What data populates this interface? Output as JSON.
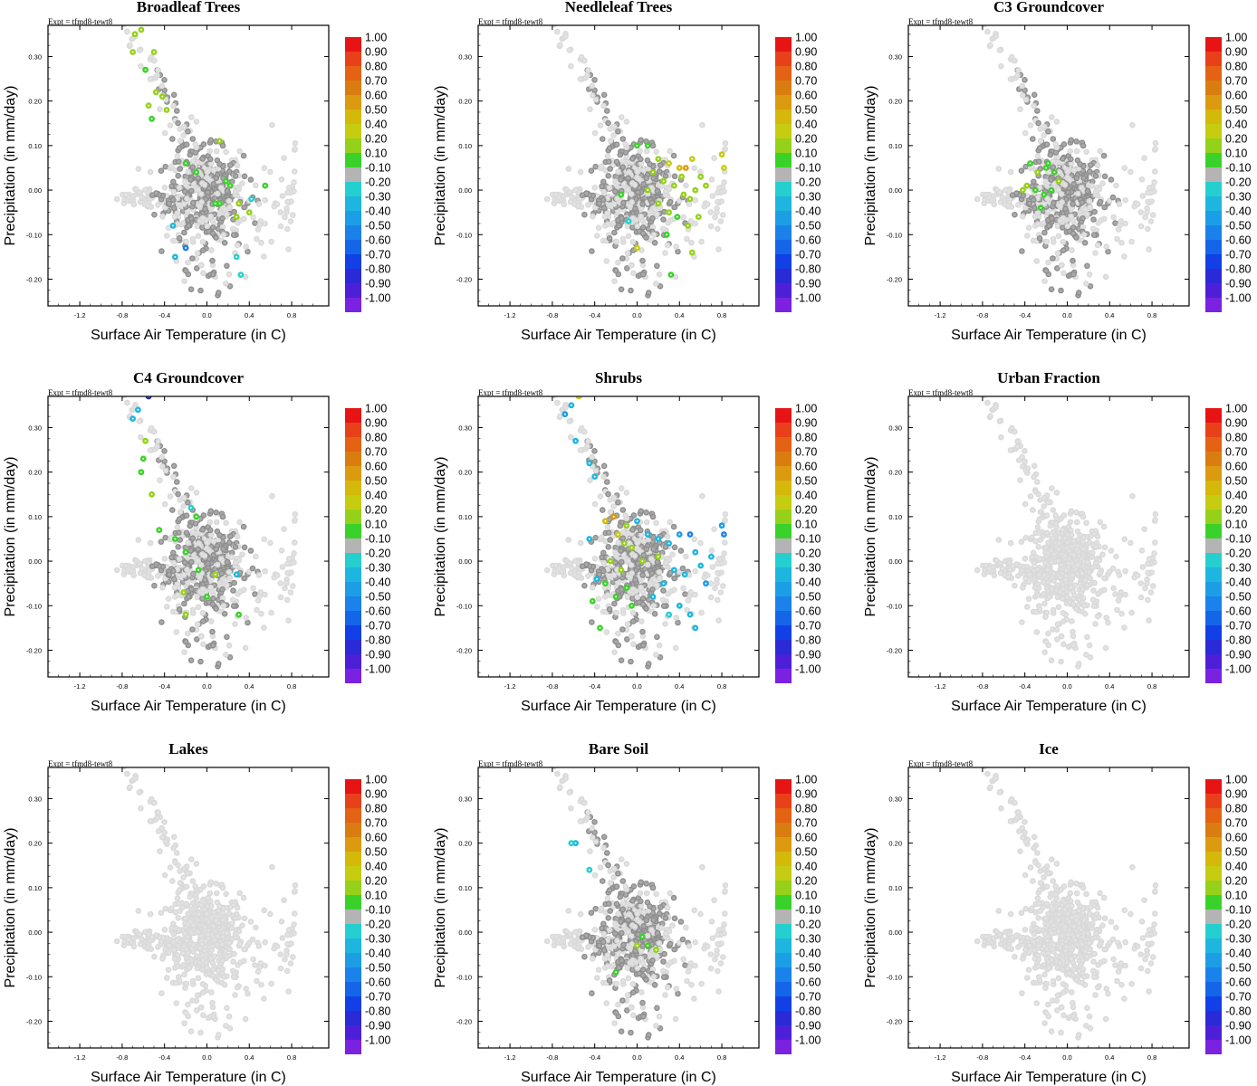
{
  "figure": {
    "expt_label": "Expt = tfmd8-tewt8",
    "xlabel": "Surface Air Temperature (in C)",
    "ylabel": "Precipitation (in mm/day)"
  },
  "colorbar": {
    "labels": [
      "1.00",
      "0.90",
      "0.80",
      "0.70",
      "0.60",
      "0.50",
      "0.40",
      "0.20",
      "0.10",
      "-0.10",
      "-0.20",
      "-0.30",
      "-0.40",
      "-0.50",
      "-0.60",
      "-0.70",
      "-0.80",
      "-0.90",
      "-1.00"
    ],
    "colors": [
      "#e61414",
      "#e8401a",
      "#e36214",
      "#d97d10",
      "#dc9a10",
      "#d4b80a",
      "#c6cc10",
      "#95d11a",
      "#3ad22a",
      "#b4b4b4",
      "#26cfcf",
      "#1eb6de",
      "#1c9ee6",
      "#1a82ea",
      "#1565e8",
      "#1240e6",
      "#2a2ad6",
      "#4d20d8",
      "#7a22e0"
    ]
  },
  "chart_data": [
    {
      "type": "scatter",
      "title": "Broadleaf Trees",
      "xlabel": "Surface Air Temperature (in C)",
      "ylabel": "Precipitation (in mm/day)",
      "xlim": [
        -1.5,
        1.15
      ],
      "ylim": [
        -0.26,
        0.37
      ],
      "xticks": [
        -1.2,
        -0.8,
        -0.4,
        0.0,
        0.4,
        0.8
      ],
      "yticks": [
        -0.2,
        -0.1,
        0.0,
        0.1,
        0.2,
        0.3
      ],
      "colored_points": [
        {
          "x": -0.68,
          "y": 0.35,
          "c": 0.2
        },
        {
          "x": -0.62,
          "y": 0.36,
          "c": 0.2
        },
        {
          "x": -0.7,
          "y": 0.31,
          "c": 0.2
        },
        {
          "x": -0.5,
          "y": 0.31,
          "c": 0.2
        },
        {
          "x": -0.58,
          "y": 0.27,
          "c": 0.1
        },
        {
          "x": -0.48,
          "y": 0.22,
          "c": 0.2
        },
        {
          "x": -0.42,
          "y": 0.21,
          "c": 0.2
        },
        {
          "x": -0.38,
          "y": 0.18,
          "c": 0.2
        },
        {
          "x": -0.55,
          "y": 0.19,
          "c": 0.2
        },
        {
          "x": -0.52,
          "y": 0.16,
          "c": 0.1
        },
        {
          "x": 0.12,
          "y": 0.11,
          "c": 0.2
        },
        {
          "x": -0.1,
          "y": 0.04,
          "c": 0.1
        },
        {
          "x": -0.2,
          "y": 0.06,
          "c": 0.1
        },
        {
          "x": 0.18,
          "y": 0.02,
          "c": 0.1
        },
        {
          "x": 0.22,
          "y": 0.01,
          "c": 0.1
        },
        {
          "x": 0.08,
          "y": -0.03,
          "c": 0.1
        },
        {
          "x": 0.12,
          "y": -0.03,
          "c": 0.1
        },
        {
          "x": 0.3,
          "y": -0.03,
          "c": 0.2
        },
        {
          "x": 0.28,
          "y": -0.06,
          "c": 0.2
        },
        {
          "x": 0.55,
          "y": 0.01,
          "c": 0.1
        },
        {
          "x": 0.42,
          "y": -0.02,
          "c": -0.2
        },
        {
          "x": -0.32,
          "y": -0.08,
          "c": -0.3
        },
        {
          "x": -0.3,
          "y": -0.15,
          "c": -0.3
        },
        {
          "x": -0.2,
          "y": -0.13,
          "c": -0.5
        },
        {
          "x": 0.28,
          "y": -0.15,
          "c": -0.2
        },
        {
          "x": 0.32,
          "y": -0.19,
          "c": -0.2
        },
        {
          "x": 0.4,
          "y": -0.05,
          "c": 0.2
        }
      ]
    },
    {
      "type": "scatter",
      "title": "Needleleaf Trees",
      "xlabel": "Surface Air Temperature (in C)",
      "ylabel": "Precipitation (in mm/day)",
      "xlim": [
        -1.5,
        1.15
      ],
      "ylim": [
        -0.26,
        0.37
      ],
      "xticks": [
        -1.2,
        -0.8,
        -0.4,
        0.0,
        0.4,
        0.8
      ],
      "yticks": [
        -0.2,
        -0.1,
        0.0,
        0.1,
        0.2,
        0.3
      ],
      "colored_points": [
        {
          "x": 0.0,
          "y": 0.1,
          "c": 0.1
        },
        {
          "x": 0.1,
          "y": 0.1,
          "c": 0.1
        },
        {
          "x": 0.2,
          "y": 0.07,
          "c": 0.3
        },
        {
          "x": 0.3,
          "y": 0.06,
          "c": 0.4
        },
        {
          "x": 0.4,
          "y": 0.05,
          "c": 0.5
        },
        {
          "x": 0.46,
          "y": 0.05,
          "c": 0.6
        },
        {
          "x": 0.52,
          "y": 0.07,
          "c": 0.4
        },
        {
          "x": 0.8,
          "y": 0.08,
          "c": 0.4
        },
        {
          "x": 0.82,
          "y": 0.05,
          "c": 0.4
        },
        {
          "x": 0.6,
          "y": 0.03,
          "c": 0.3
        },
        {
          "x": 0.55,
          "y": 0.0,
          "c": 0.3
        },
        {
          "x": 0.5,
          "y": -0.02,
          "c": 0.3
        },
        {
          "x": 0.15,
          "y": 0.04,
          "c": 0.3
        },
        {
          "x": 0.25,
          "y": 0.02,
          "c": 0.3
        },
        {
          "x": 0.35,
          "y": 0.01,
          "c": 0.2
        },
        {
          "x": 0.42,
          "y": 0.03,
          "c": 0.3
        },
        {
          "x": -0.15,
          "y": -0.01,
          "c": 0.1
        },
        {
          "x": 0.1,
          "y": 0.0,
          "c": 0.2
        },
        {
          "x": 0.2,
          "y": -0.03,
          "c": 0.2
        },
        {
          "x": 0.3,
          "y": -0.05,
          "c": 0.2
        },
        {
          "x": 0.38,
          "y": -0.06,
          "c": 0.1
        },
        {
          "x": 0.48,
          "y": -0.08,
          "c": 0.2
        },
        {
          "x": 0.58,
          "y": -0.06,
          "c": 0.2
        },
        {
          "x": 0.28,
          "y": -0.1,
          "c": 0.1
        },
        {
          "x": 0.52,
          "y": -0.14,
          "c": 0.2
        },
        {
          "x": 0.32,
          "y": -0.19,
          "c": 0.1
        },
        {
          "x": -0.08,
          "y": -0.07,
          "c": -0.2
        },
        {
          "x": 0.0,
          "y": -0.13,
          "c": 0.4
        },
        {
          "x": 0.65,
          "y": 0.01,
          "c": 0.3
        },
        {
          "x": 0.44,
          "y": -0.01,
          "c": 0.2
        }
      ]
    },
    {
      "type": "scatter",
      "title": "C3 Groundcover",
      "xlabel": "Surface Air Temperature (in C)",
      "ylabel": "Precipitation (in mm/day)",
      "xlim": [
        -1.5,
        1.15
      ],
      "ylim": [
        -0.26,
        0.37
      ],
      "xticks": [
        -1.2,
        -0.8,
        -0.4,
        0.0,
        0.4,
        0.8
      ],
      "yticks": [
        -0.2,
        -0.1,
        0.0,
        0.1,
        0.2,
        0.3
      ],
      "colored_points": [
        {
          "x": -0.35,
          "y": 0.06,
          "c": 0.1
        },
        {
          "x": -0.28,
          "y": 0.04,
          "c": 0.2
        },
        {
          "x": -0.2,
          "y": 0.05,
          "c": 0.1
        },
        {
          "x": -0.12,
          "y": 0.04,
          "c": 0.1
        },
        {
          "x": -0.38,
          "y": 0.01,
          "c": 0.2
        },
        {
          "x": -0.3,
          "y": 0.0,
          "c": 0.1
        },
        {
          "x": -0.22,
          "y": -0.01,
          "c": 0.1
        },
        {
          "x": -0.15,
          "y": 0.0,
          "c": 0.1
        },
        {
          "x": -0.25,
          "y": -0.04,
          "c": 0.1
        },
        {
          "x": -0.08,
          "y": 0.02,
          "c": 0.2
        },
        {
          "x": -0.42,
          "y": 0.0,
          "c": 0.2
        },
        {
          "x": -0.18,
          "y": 0.06,
          "c": 0.1
        }
      ]
    },
    {
      "type": "scatter",
      "title": "C4 Groundcover",
      "xlabel": "Surface Air Temperature (in C)",
      "ylabel": "Precipitation (in mm/day)",
      "xlim": [
        -1.5,
        1.15
      ],
      "ylim": [
        -0.26,
        0.37
      ],
      "xticks": [
        -1.2,
        -0.8,
        -0.4,
        0.0,
        0.4,
        0.8
      ],
      "yticks": [
        -0.2,
        -0.1,
        0.0,
        0.1,
        0.2,
        0.3
      ],
      "colored_points": [
        {
          "x": -0.55,
          "y": 0.37,
          "c": -0.8
        },
        {
          "x": -0.7,
          "y": 0.32,
          "c": -0.3
        },
        {
          "x": -0.65,
          "y": 0.34,
          "c": -0.3
        },
        {
          "x": -0.58,
          "y": 0.27,
          "c": 0.2
        },
        {
          "x": -0.6,
          "y": 0.23,
          "c": 0.1
        },
        {
          "x": -0.62,
          "y": 0.2,
          "c": 0.1
        },
        {
          "x": -0.52,
          "y": 0.15,
          "c": 0.2
        },
        {
          "x": -0.45,
          "y": 0.07,
          "c": 0.1
        },
        {
          "x": -0.15,
          "y": 0.12,
          "c": -0.2
        },
        {
          "x": -0.1,
          "y": 0.1,
          "c": 0.1
        },
        {
          "x": -0.3,
          "y": 0.05,
          "c": 0.1
        },
        {
          "x": -0.2,
          "y": 0.02,
          "c": 0.1
        },
        {
          "x": -0.08,
          "y": -0.02,
          "c": 0.1
        },
        {
          "x": 0.08,
          "y": -0.03,
          "c": 0.2
        },
        {
          "x": -0.22,
          "y": -0.07,
          "c": 0.2
        },
        {
          "x": 0.0,
          "y": -0.08,
          "c": 0.1
        },
        {
          "x": -0.2,
          "y": -0.12,
          "c": 0.3
        },
        {
          "x": 0.3,
          "y": -0.12,
          "c": 0.1
        },
        {
          "x": 0.28,
          "y": -0.03,
          "c": -0.3
        }
      ]
    },
    {
      "type": "scatter",
      "title": "Shrubs",
      "xlabel": "Surface Air Temperature (in C)",
      "ylabel": "Precipitation (in mm/day)",
      "xlim": [
        -1.5,
        1.15
      ],
      "ylim": [
        -0.26,
        0.37
      ],
      "xticks": [
        -1.2,
        -0.8,
        -0.4,
        0.0,
        0.4,
        0.8
      ],
      "yticks": [
        -0.2,
        -0.1,
        0.0,
        0.1,
        0.2,
        0.3
      ],
      "colored_points": [
        {
          "x": -0.55,
          "y": 0.37,
          "c": 0.4
        },
        {
          "x": -0.62,
          "y": 0.35,
          "c": -0.3
        },
        {
          "x": -0.68,
          "y": 0.33,
          "c": -0.4
        },
        {
          "x": -0.58,
          "y": 0.27,
          "c": -0.3
        },
        {
          "x": -0.45,
          "y": 0.22,
          "c": -0.3
        },
        {
          "x": -0.4,
          "y": 0.19,
          "c": -0.3
        },
        {
          "x": -0.45,
          "y": 0.05,
          "c": -0.3
        },
        {
          "x": -0.38,
          "y": -0.04,
          "c": -0.3
        },
        {
          "x": -0.3,
          "y": 0.09,
          "c": 0.5
        },
        {
          "x": -0.22,
          "y": 0.1,
          "c": 0.6
        },
        {
          "x": -0.18,
          "y": 0.06,
          "c": 0.4
        },
        {
          "x": -0.12,
          "y": 0.04,
          "c": 0.3
        },
        {
          "x": -0.05,
          "y": 0.03,
          "c": 0.2
        },
        {
          "x": -0.25,
          "y": 0.0,
          "c": 0.2
        },
        {
          "x": -0.15,
          "y": -0.02,
          "c": 0.2
        },
        {
          "x": -0.3,
          "y": -0.05,
          "c": 0.1
        },
        {
          "x": -0.2,
          "y": -0.08,
          "c": 0.1
        },
        {
          "x": -0.1,
          "y": -0.06,
          "c": 0.1
        },
        {
          "x": -0.05,
          "y": -0.1,
          "c": 0.1
        },
        {
          "x": -0.35,
          "y": -0.15,
          "c": 0.1
        },
        {
          "x": -0.42,
          "y": -0.09,
          "c": 0.1
        },
        {
          "x": 0.0,
          "y": 0.09,
          "c": -0.3
        },
        {
          "x": 0.1,
          "y": 0.06,
          "c": -0.3
        },
        {
          "x": 0.2,
          "y": 0.05,
          "c": -0.3
        },
        {
          "x": 0.3,
          "y": 0.04,
          "c": -0.3
        },
        {
          "x": 0.4,
          "y": 0.06,
          "c": -0.4
        },
        {
          "x": 0.5,
          "y": 0.06,
          "c": -0.5
        },
        {
          "x": 0.8,
          "y": 0.08,
          "c": -0.4
        },
        {
          "x": 0.82,
          "y": 0.06,
          "c": -0.5
        },
        {
          "x": 0.55,
          "y": 0.02,
          "c": -0.3
        },
        {
          "x": 0.6,
          "y": -0.01,
          "c": -0.3
        },
        {
          "x": 0.7,
          "y": 0.01,
          "c": -0.3
        },
        {
          "x": 0.45,
          "y": -0.03,
          "c": -0.3
        },
        {
          "x": 0.35,
          "y": -0.02,
          "c": -0.3
        },
        {
          "x": 0.25,
          "y": -0.05,
          "c": -0.3
        },
        {
          "x": 0.15,
          "y": -0.08,
          "c": -0.3
        },
        {
          "x": 0.4,
          "y": -0.1,
          "c": -0.3
        },
        {
          "x": 0.5,
          "y": -0.12,
          "c": -0.3
        },
        {
          "x": 0.55,
          "y": -0.15,
          "c": -0.3
        },
        {
          "x": 0.3,
          "y": -0.12,
          "c": -0.2
        },
        {
          "x": 0.65,
          "y": -0.05,
          "c": -0.4
        },
        {
          "x": 0.05,
          "y": 0.0,
          "c": 0.2
        },
        {
          "x": 0.2,
          "y": 0.01,
          "c": 0.2
        },
        {
          "x": -0.1,
          "y": 0.08,
          "c": 0.3
        }
      ]
    },
    {
      "type": "scatter",
      "title": "Urban Fraction",
      "xlabel": "Surface Air Temperature (in C)",
      "ylabel": "Precipitation (in mm/day)",
      "xlim": [
        -1.5,
        1.15
      ],
      "ylim": [
        -0.26,
        0.37
      ],
      "xticks": [
        -1.2,
        -0.8,
        -0.4,
        0.0,
        0.4,
        0.8
      ],
      "yticks": [
        -0.2,
        -0.1,
        0.0,
        0.1,
        0.2,
        0.3
      ],
      "colored_points": []
    },
    {
      "type": "scatter",
      "title": "Lakes",
      "xlabel": "Surface Air Temperature (in C)",
      "ylabel": "Precipitation (in mm/day)",
      "xlim": [
        -1.5,
        1.15
      ],
      "ylim": [
        -0.26,
        0.37
      ],
      "xticks": [
        -1.2,
        -0.8,
        -0.4,
        0.0,
        0.4,
        0.8
      ],
      "yticks": [
        -0.2,
        -0.1,
        0.0,
        0.1,
        0.2,
        0.3
      ],
      "colored_points": []
    },
    {
      "type": "scatter",
      "title": "Bare Soil",
      "xlabel": "Surface Air Temperature (in C)",
      "ylabel": "Precipitation (in mm/day)",
      "xlim": [
        -1.5,
        1.15
      ],
      "ylim": [
        -0.26,
        0.37
      ],
      "xticks": [
        -1.2,
        -0.8,
        -0.4,
        0.0,
        0.4,
        0.8
      ],
      "yticks": [
        -0.2,
        -0.1,
        0.0,
        0.1,
        0.2,
        0.3
      ],
      "colored_points": [
        {
          "x": -0.58,
          "y": 0.2,
          "c": -0.3
        },
        {
          "x": -0.62,
          "y": 0.2,
          "c": -0.2
        },
        {
          "x": -0.45,
          "y": 0.14,
          "c": -0.2
        },
        {
          "x": 0.05,
          "y": -0.01,
          "c": 0.1
        },
        {
          "x": 0.1,
          "y": -0.03,
          "c": 0.1
        },
        {
          "x": 0.18,
          "y": -0.04,
          "c": 0.2
        },
        {
          "x": -0.2,
          "y": -0.09,
          "c": 0.1
        },
        {
          "x": 0.0,
          "y": -0.03,
          "c": 0.2
        }
      ]
    },
    {
      "type": "scatter",
      "title": "Ice",
      "xlabel": "Surface Air Temperature (in C)",
      "ylabel": "Precipitation (in mm/day)",
      "xlim": [
        -1.5,
        1.15
      ],
      "ylim": [
        -0.26,
        0.37
      ],
      "xticks": [
        -1.2,
        -0.8,
        -0.4,
        0.0,
        0.4,
        0.8
      ],
      "yticks": [
        -0.2,
        -0.1,
        0.0,
        0.1,
        0.2,
        0.3
      ],
      "colored_points": []
    }
  ]
}
